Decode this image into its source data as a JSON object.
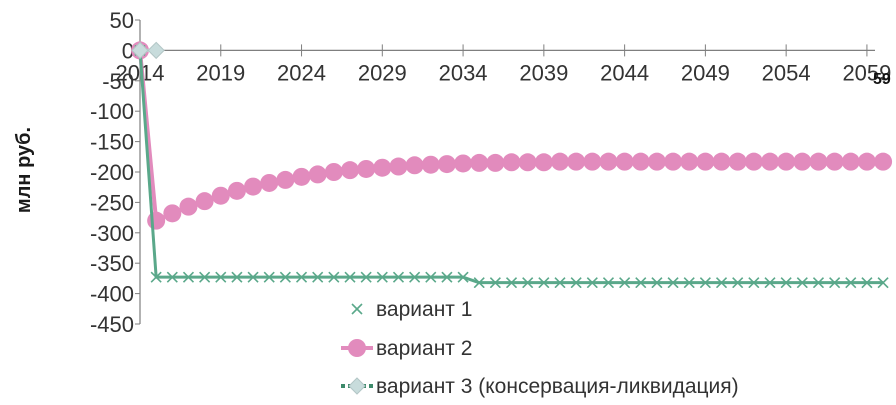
{
  "chart_data": {
    "type": "line",
    "title": "",
    "xlabel": "",
    "ylabel": "млн руб.",
    "ylim": [
      -450,
      50
    ],
    "y_ticks": [
      "50",
      "0",
      "-50",
      "-100",
      "-150",
      "-200",
      "-250",
      "-300",
      "-350",
      "-400",
      "-450"
    ],
    "x_ticks": [
      "2014",
      "2019",
      "2024",
      "2029",
      "2034",
      "2039",
      "2044",
      "2049",
      "2054",
      "2059"
    ],
    "x_range": [
      2014,
      2059
    ],
    "x_axis_crosses_at": 0,
    "grid": false,
    "legend_position": "bottom-center",
    "cut_off_text": "59",
    "series": [
      {
        "name": "вариант 1",
        "marker": "x",
        "color": "#5aa88a",
        "points": [
          [
            2014,
            0
          ],
          [
            2015,
            -373
          ],
          [
            2016,
            -373
          ],
          [
            2017,
            -373
          ],
          [
            2018,
            -373
          ],
          [
            2019,
            -373
          ],
          [
            2020,
            -373
          ],
          [
            2021,
            -373
          ],
          [
            2022,
            -373
          ],
          [
            2023,
            -373
          ],
          [
            2024,
            -373
          ],
          [
            2025,
            -373
          ],
          [
            2026,
            -373
          ],
          [
            2027,
            -373
          ],
          [
            2028,
            -373
          ],
          [
            2029,
            -373
          ],
          [
            2030,
            -373
          ],
          [
            2031,
            -373
          ],
          [
            2032,
            -373
          ],
          [
            2033,
            -373
          ],
          [
            2034,
            -373
          ],
          [
            2035,
            -382
          ],
          [
            2036,
            -382
          ],
          [
            2037,
            -382
          ],
          [
            2038,
            -382
          ],
          [
            2039,
            -382
          ],
          [
            2040,
            -382
          ],
          [
            2041,
            -382
          ],
          [
            2042,
            -382
          ],
          [
            2043,
            -382
          ],
          [
            2044,
            -382
          ],
          [
            2045,
            -382
          ],
          [
            2046,
            -382
          ],
          [
            2047,
            -382
          ],
          [
            2048,
            -382
          ],
          [
            2049,
            -382
          ],
          [
            2050,
            -382
          ],
          [
            2051,
            -382
          ],
          [
            2052,
            -382
          ],
          [
            2053,
            -382
          ],
          [
            2054,
            -382
          ],
          [
            2055,
            -382
          ],
          [
            2056,
            -382
          ],
          [
            2057,
            -382
          ],
          [
            2058,
            -382
          ],
          [
            2059,
            -382
          ],
          [
            2060,
            -382
          ]
        ]
      },
      {
        "name": "вариант 2",
        "marker": "circle",
        "color": "#e28bbd",
        "points": [
          [
            2014,
            0
          ],
          [
            2015,
            -280
          ],
          [
            2016,
            -268
          ],
          [
            2017,
            -257
          ],
          [
            2018,
            -248
          ],
          [
            2019,
            -239
          ],
          [
            2020,
            -231
          ],
          [
            2021,
            -224
          ],
          [
            2022,
            -218
          ],
          [
            2023,
            -213
          ],
          [
            2024,
            -208
          ],
          [
            2025,
            -204
          ],
          [
            2026,
            -200
          ],
          [
            2027,
            -197
          ],
          [
            2028,
            -195
          ],
          [
            2029,
            -193
          ],
          [
            2030,
            -191
          ],
          [
            2031,
            -189
          ],
          [
            2032,
            -188
          ],
          [
            2033,
            -187
          ],
          [
            2034,
            -186
          ],
          [
            2035,
            -185
          ],
          [
            2036,
            -185
          ],
          [
            2037,
            -184
          ],
          [
            2038,
            -184
          ],
          [
            2039,
            -184
          ],
          [
            2040,
            -183
          ],
          [
            2041,
            -183
          ],
          [
            2042,
            -183
          ],
          [
            2043,
            -183
          ],
          [
            2044,
            -183
          ],
          [
            2045,
            -183
          ],
          [
            2046,
            -183
          ],
          [
            2047,
            -183
          ],
          [
            2048,
            -183
          ],
          [
            2049,
            -183
          ],
          [
            2050,
            -183
          ],
          [
            2051,
            -183
          ],
          [
            2052,
            -183
          ],
          [
            2053,
            -183
          ],
          [
            2054,
            -183
          ],
          [
            2055,
            -183
          ],
          [
            2056,
            -183
          ],
          [
            2057,
            -183
          ],
          [
            2058,
            -183
          ],
          [
            2059,
            -183
          ],
          [
            2060,
            -183
          ]
        ]
      },
      {
        "name": "вариант 3 (консервация-ликвидация)",
        "marker": "diamond",
        "color": "#c8dcdc",
        "points": [
          [
            2014,
            0
          ],
          [
            2015,
            0
          ]
        ]
      }
    ]
  }
}
